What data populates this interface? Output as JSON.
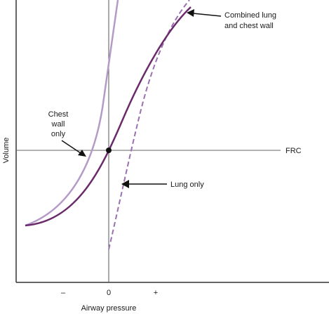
{
  "labels": {
    "y_axis": "Volume",
    "x_axis": "Airway pressure",
    "tick_minus": "–",
    "tick_zero": "0",
    "tick_plus": "+",
    "frc": "FRC",
    "combined_line1": "Combined lung",
    "combined_line2": "and chest wall",
    "chest_line1": "Chest",
    "chest_line2": "wall",
    "chest_line3": "only",
    "lung_only": "Lung only"
  },
  "colors": {
    "combined": "#6b2a6b",
    "chest_wall": "#b59ac8",
    "lung": "#9a70b0",
    "axes": "#333333",
    "frc_line": "#666666"
  }
}
